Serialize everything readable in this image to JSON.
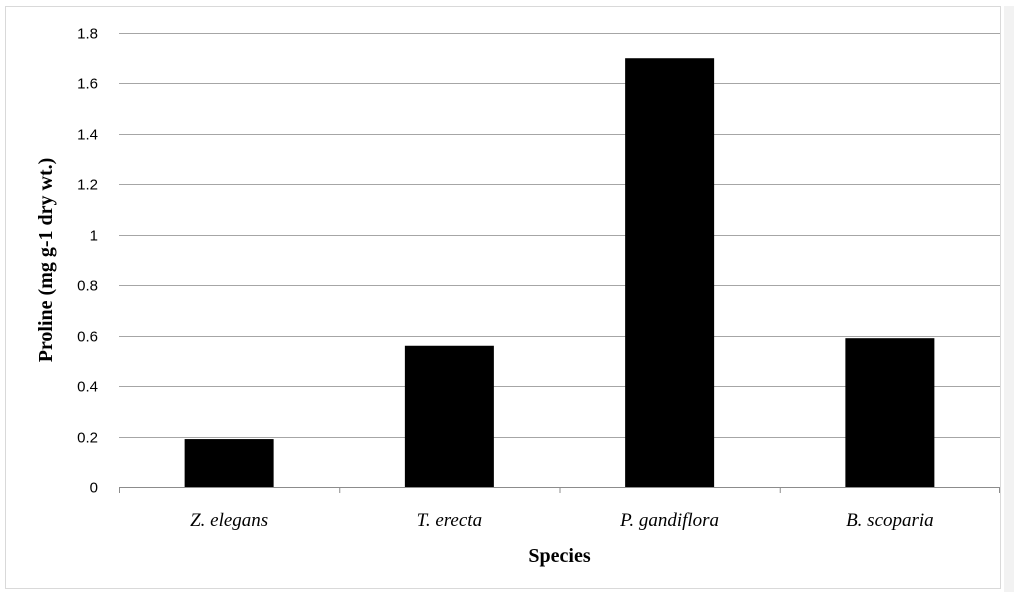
{
  "chart_data": {
    "type": "bar",
    "categories": [
      "Z. elegans",
      "T. erecta",
      "P. gandiflora",
      "B. scoparia"
    ],
    "values": [
      0.19,
      0.56,
      1.7,
      0.59
    ],
    "title": "",
    "xlabel": "Species",
    "ylabel": "Proline (mg g-1 dry wt.)",
    "ylim": [
      0,
      1.8
    ],
    "yticks": [
      "0",
      "0.2",
      "0.4",
      "0.6",
      "0.8",
      "1",
      "1.2",
      "1.4",
      "1.6",
      "1.8"
    ],
    "grid": true,
    "legend": "none",
    "bar_color": "#000000",
    "grid_color": "#a6a6a6"
  }
}
